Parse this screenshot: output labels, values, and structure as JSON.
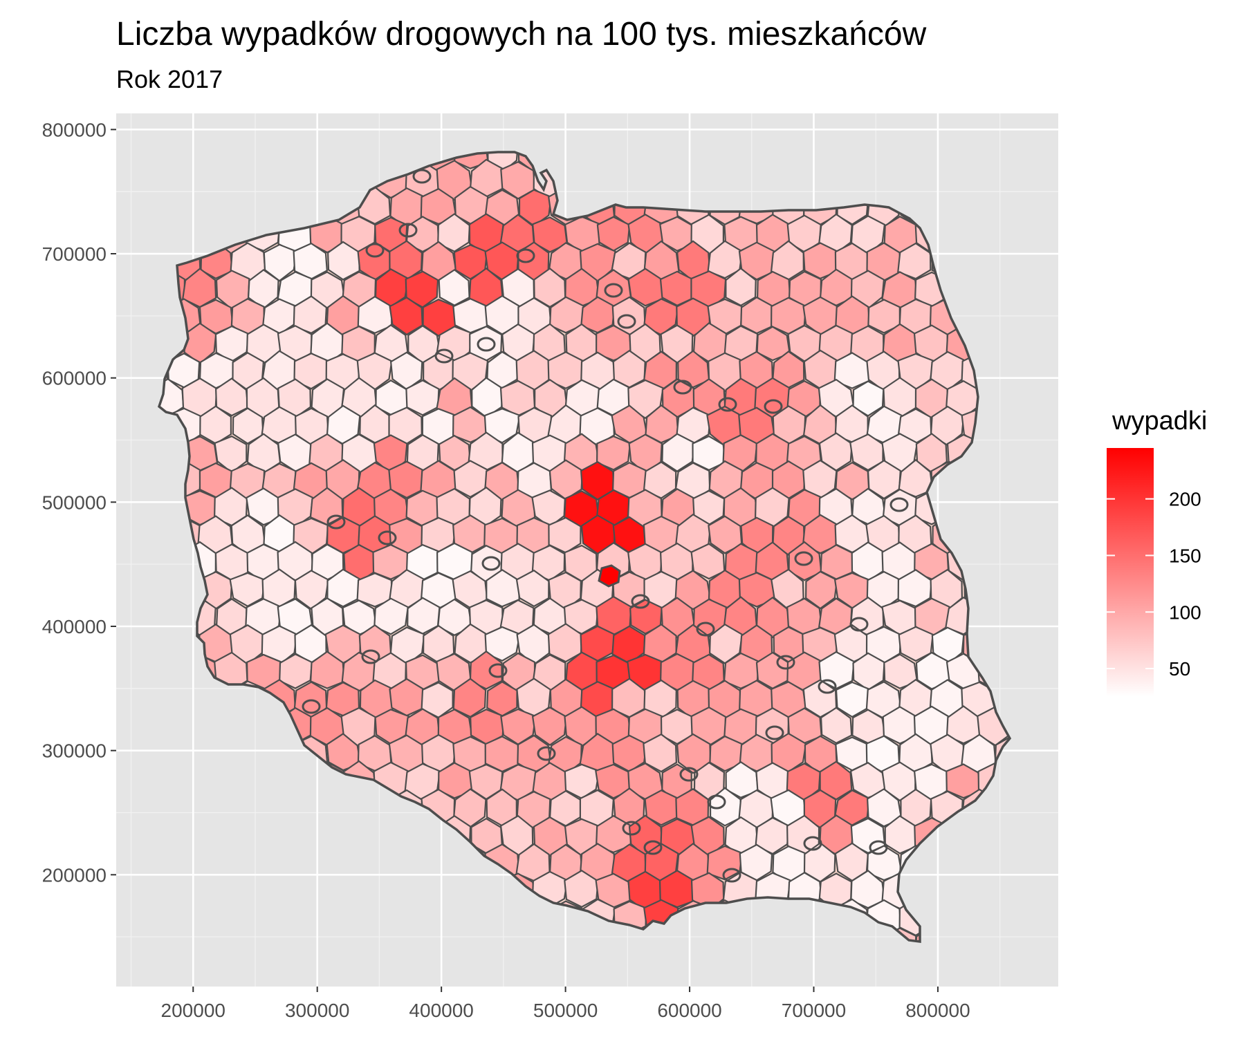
{
  "title": "Liczba wypadków drogowych na 100 tys. mieszkańców",
  "subtitle": "Rok 2017",
  "map": {
    "region": "Poland",
    "unit": "powiat (county)",
    "fill_low_color": "#ffffff",
    "fill_high_color": "#ff0000",
    "border_color": "#4d4d4d",
    "panel_background": "#e5e5e5",
    "grid_color": "#ffffff",
    "x_axis": {
      "ticks": [
        200000,
        300000,
        400000,
        500000,
        600000,
        700000,
        800000
      ],
      "labels": [
        "200000",
        "300000",
        "400000",
        "500000",
        "600000",
        "700000",
        "800000"
      ],
      "range": [
        138000,
        897000
      ]
    },
    "y_axis": {
      "ticks": [
        200000,
        300000,
        400000,
        500000,
        600000,
        700000,
        800000
      ],
      "labels": [
        "200000",
        "300000",
        "400000",
        "500000",
        "600000",
        "700000",
        "800000"
      ],
      "range": [
        110000,
        813000
      ]
    }
  },
  "legend": {
    "title": "wypadki",
    "ticks": [
      50,
      100,
      150,
      200
    ],
    "labels": [
      "50",
      "100",
      "150",
      "200"
    ],
    "range": [
      25,
      245
    ]
  }
}
